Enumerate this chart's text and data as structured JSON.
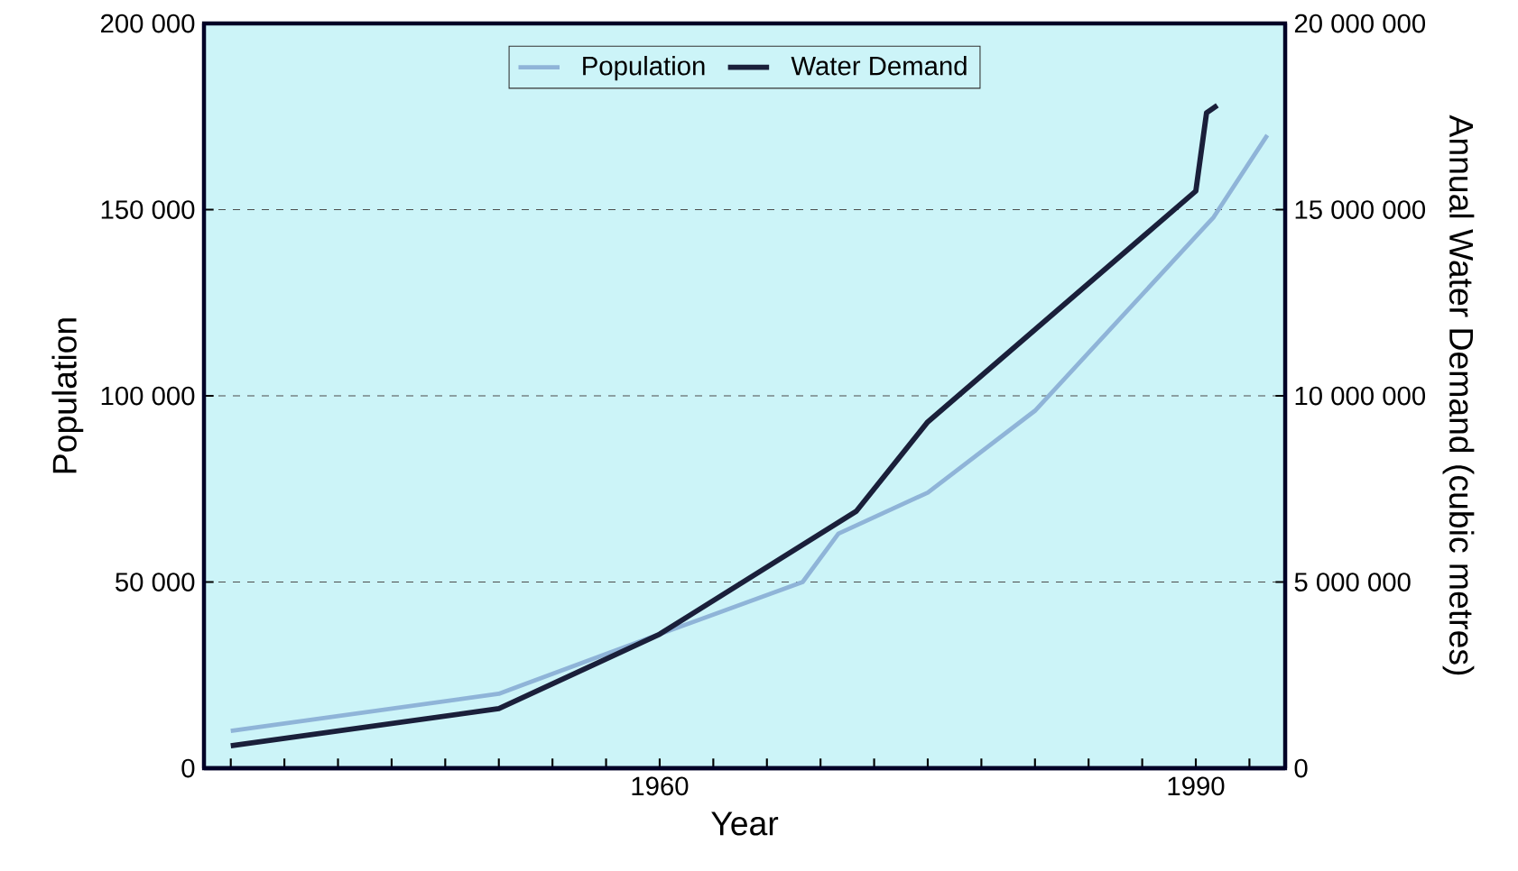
{
  "chart_data": {
    "type": "line",
    "xlabel": "Year",
    "ylabel": "Population",
    "y2label": "Annual Water Demand (cubic metres)",
    "xlim": [
      1934.5,
      1995
    ],
    "xticks": [
      {
        "value": 1936,
        "label": null
      },
      {
        "value": 1939,
        "label": null
      },
      {
        "value": 1942,
        "label": null
      },
      {
        "value": 1945,
        "label": null
      },
      {
        "value": 1948,
        "label": null
      },
      {
        "value": 1951,
        "label": null
      },
      {
        "value": 1954,
        "label": null
      },
      {
        "value": 1957,
        "label": null
      },
      1960,
      {
        "value": 1963,
        "label": null
      },
      {
        "value": 1966,
        "label": null
      },
      {
        "value": 1969,
        "label": null
      },
      {
        "value": 1972,
        "label": null
      },
      {
        "value": 1975,
        "label": null
      },
      {
        "value": 1978,
        "label": null
      },
      {
        "value": 1981,
        "label": null
      },
      {
        "value": 1984,
        "label": null
      },
      {
        "value": 1987,
        "label": null
      },
      1990,
      {
        "value": 1993,
        "label": null
      }
    ],
    "ylim": [
      0,
      200000
    ],
    "yticks": [
      0,
      {
        "value": 50000,
        "label": "50 000"
      },
      {
        "value": 100000,
        "label": "100 000"
      },
      {
        "value": 150000,
        "label": "150 000"
      },
      {
        "value": 200000,
        "label": "200 000"
      }
    ],
    "y2lim": [
      0,
      20000000
    ],
    "y2ticks": [
      0,
      {
        "value": 5000000,
        "label": "5 000 000"
      },
      {
        "value": 10000000,
        "label": "10 000 000"
      },
      {
        "value": 15000000,
        "label": "15 000 000"
      },
      {
        "value": 20000000,
        "label": "20 000 000"
      }
    ],
    "grid": "y",
    "legend": "top",
    "series": [
      {
        "name": "Population",
        "color": "#8fb4d8",
        "x": [
          1936,
          1951,
          1960,
          1968,
          1970,
          1975,
          1981,
          1991,
          1994
        ],
        "values": [
          10000,
          20000,
          36000,
          50000,
          63000,
          74000,
          96000,
          148000,
          170000
        ]
      },
      {
        "name": "Water Demand",
        "color": "#1a1f3a",
        "axis": "y2",
        "x": [
          1936,
          1951,
          1960,
          1971,
          1975,
          1990,
          1990.6,
          1991.2
        ],
        "values": [
          600000,
          1600000,
          3600000,
          6900000,
          9300000,
          15500000,
          17600000,
          17800000
        ]
      }
    ]
  }
}
